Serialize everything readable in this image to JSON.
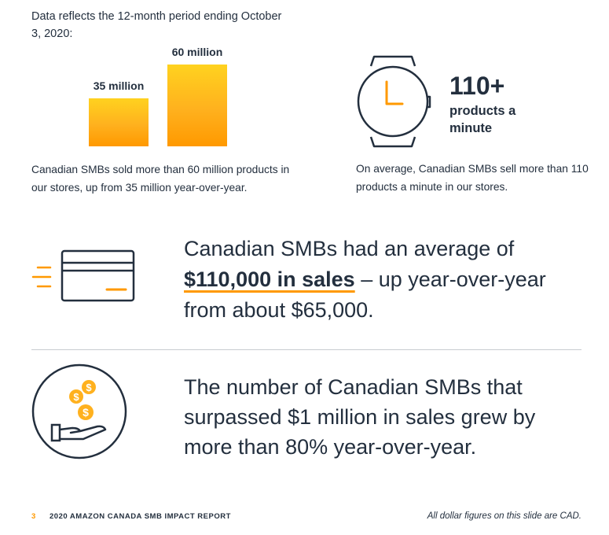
{
  "period_note": "Data reflects the 12-month period ending October 3, 2020:",
  "chart_data": {
    "type": "bar",
    "categories": [
      "",
      ""
    ],
    "values": [
      35,
      60
    ],
    "data_labels": [
      "35 million",
      "60 million"
    ],
    "ylim": [
      0,
      60
    ]
  },
  "products_desc": "Canadian SMBs sold more than 60 million products in our stores, up from 35 million year-over-year.",
  "minute_stat": {
    "value": "110+",
    "label": "products a minute",
    "desc": "On average, Canadian SMBs sell more than 110 products a minute in our stores."
  },
  "sales_stat": {
    "pre": "Canadian SMBs had an average of",
    "strong": "$110,000 in sales",
    "post": " – up year-over-year",
    "line3": "from about $65,000."
  },
  "million_stat": "The number of Canadian SMBs that surpassed $1 million in sales grew by more than 80% year-over-year.",
  "footer": {
    "page_number": "3",
    "title": "2020 AMAZON CANADA SMB IMPACT REPORT",
    "note": "All dollar figures on this slide are CAD."
  },
  "colors": {
    "accent": "#ff9900",
    "text": "#232f3e"
  },
  "icons": [
    "watch-icon",
    "credit-card-icon",
    "hand-coins-icon"
  ]
}
